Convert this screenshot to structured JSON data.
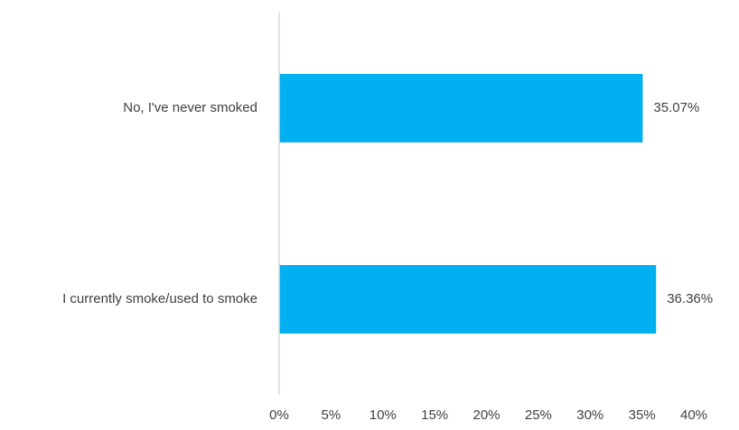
{
  "chart_data": {
    "type": "bar",
    "orientation": "horizontal",
    "title": "",
    "xlabel": "",
    "ylabel": "",
    "categories": [
      "No, I've never smoked",
      "I currently smoke/used to smoke"
    ],
    "values": [
      35.07,
      36.36
    ],
    "data_labels": [
      "35.07%",
      "36.36%"
    ],
    "xlim": [
      0,
      40
    ],
    "x_ticks": [
      0,
      5,
      10,
      15,
      20,
      25,
      30,
      35,
      40
    ],
    "x_tick_labels": [
      "0%",
      "5%",
      "10%",
      "15%",
      "20%",
      "25%",
      "30%",
      "35%",
      "40%"
    ],
    "grid": false,
    "legend": "none",
    "bar_color": "#00B0F0",
    "axis_color": "#D9D9D9",
    "text_color": "#404040"
  }
}
